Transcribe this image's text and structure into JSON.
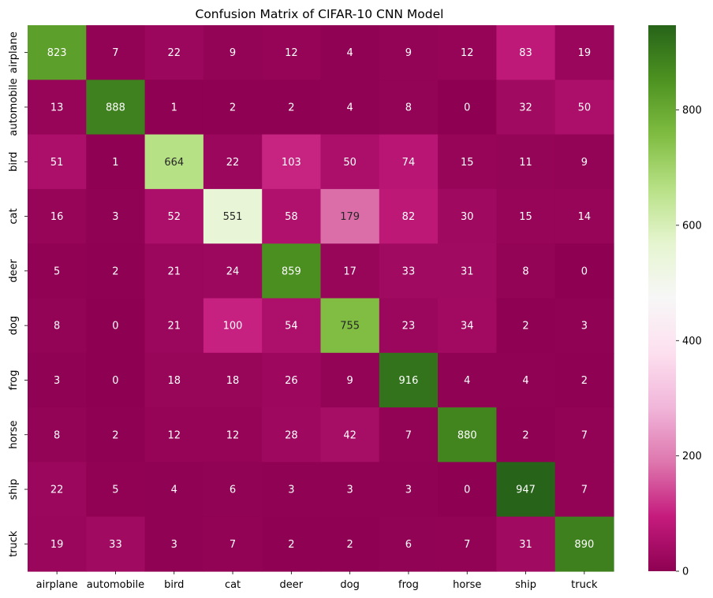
{
  "chart_data": {
    "type": "heatmap",
    "title": "Confusion Matrix of CIFAR-10 CNN Model",
    "xlabel": "",
    "ylabel": "",
    "x_labels": [
      "airplane",
      "automobile",
      "bird",
      "cat",
      "deer",
      "dog",
      "frog",
      "horse",
      "ship",
      "truck"
    ],
    "y_labels": [
      "airplane",
      "automobile",
      "bird",
      "cat",
      "deer",
      "dog",
      "frog",
      "horse",
      "ship",
      "truck"
    ],
    "values": [
      [
        823,
        7,
        22,
        9,
        12,
        4,
        9,
        12,
        83,
        19
      ],
      [
        13,
        888,
        1,
        2,
        2,
        4,
        8,
        0,
        32,
        50
      ],
      [
        51,
        1,
        664,
        22,
        103,
        50,
        74,
        15,
        11,
        9
      ],
      [
        16,
        3,
        52,
        551,
        58,
        179,
        82,
        30,
        15,
        14
      ],
      [
        5,
        2,
        21,
        24,
        859,
        17,
        33,
        31,
        8,
        0
      ],
      [
        8,
        0,
        21,
        100,
        54,
        755,
        23,
        34,
        2,
        3
      ],
      [
        3,
        0,
        18,
        18,
        26,
        9,
        916,
        4,
        4,
        2
      ],
      [
        8,
        2,
        12,
        12,
        28,
        42,
        7,
        880,
        2,
        7
      ],
      [
        22,
        5,
        4,
        6,
        3,
        3,
        3,
        0,
        947,
        7
      ],
      [
        19,
        33,
        3,
        7,
        2,
        2,
        6,
        7,
        31,
        890
      ]
    ],
    "colormap": "PiYG",
    "colorbar": {
      "range": [
        0,
        947
      ],
      "ticks": [
        0,
        200,
        400,
        600,
        800
      ]
    }
  }
}
